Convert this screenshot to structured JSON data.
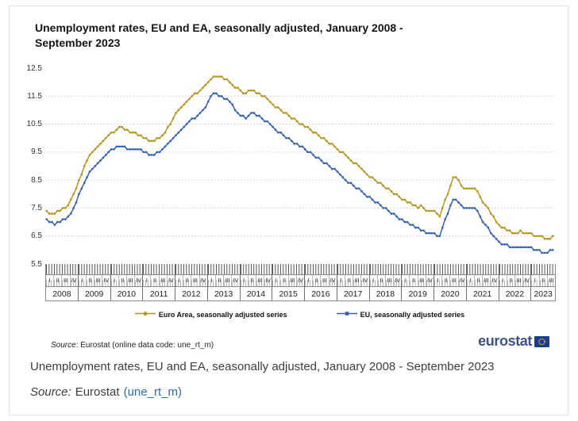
{
  "page": {
    "figure": {
      "title_line1": "Unemployment rates, EU and EA, seasonally adjusted, January 2008 -",
      "title_line2": "September 2023",
      "source_note_label": "Source",
      "source_note_rest": ": Eurostat (online data code: une_rt_m)",
      "logo_text": "eurostat"
    },
    "caption": {
      "text": "Unemployment rates, EU and EA, seasonally adjusted, January 2008 - September 2023",
      "source_label": "Source:",
      "source_text": "Eurostat",
      "source_link": "(une_rt_m)"
    }
  },
  "chart_data": {
    "type": "line",
    "title": "Unemployment rates, EU and EA, seasonally adjusted, January 2008 - September 2023",
    "xlabel": "",
    "ylabel": "",
    "x_unit": "month",
    "x_start": "2008-01",
    "x_end": "2023-09",
    "n_points": 189,
    "ylim": [
      5.5,
      12.5
    ],
    "yticks": [
      5.5,
      6.5,
      7.5,
      8.5,
      9.5,
      10.5,
      11.5,
      12.5
    ],
    "grid": "horizontal dotted lines at 6.5 through 11.5",
    "legend_position": "bottom-center",
    "axis_years": [
      "2008",
      "2009",
      "2010",
      "2011",
      "2012",
      "2013",
      "2014",
      "2015",
      "2016",
      "2017",
      "2018",
      "2019",
      "2020",
      "2021",
      "2022",
      "2023"
    ],
    "months_in_final_year": 9,
    "quarter_labels": [
      "I",
      "II",
      "III",
      "IV"
    ],
    "colors": {
      "euro_area": "#b5941f",
      "eu": "#3461ad",
      "gridline": "#cbcbcb"
    },
    "series": [
      {
        "name": "Euro Area, seasonally adjusted series",
        "color": "#b5941f",
        "values": [
          7.4,
          7.3,
          7.3,
          7.3,
          7.4,
          7.4,
          7.5,
          7.5,
          7.6,
          7.8,
          8.0,
          8.2,
          8.5,
          8.7,
          9.0,
          9.2,
          9.4,
          9.5,
          9.6,
          9.7,
          9.8,
          9.9,
          10.0,
          10.1,
          10.2,
          10.2,
          10.3,
          10.4,
          10.4,
          10.3,
          10.3,
          10.2,
          10.2,
          10.2,
          10.1,
          10.1,
          10.0,
          10.0,
          9.9,
          9.9,
          9.9,
          10.0,
          10.0,
          10.1,
          10.2,
          10.4,
          10.5,
          10.7,
          10.9,
          11.0,
          11.1,
          11.2,
          11.3,
          11.4,
          11.5,
          11.6,
          11.6,
          11.7,
          11.8,
          11.9,
          12.0,
          12.1,
          12.2,
          12.2,
          12.2,
          12.2,
          12.1,
          12.1,
          12.0,
          11.9,
          11.8,
          11.8,
          11.7,
          11.6,
          11.6,
          11.7,
          11.7,
          11.7,
          11.6,
          11.6,
          11.5,
          11.5,
          11.4,
          11.3,
          11.2,
          11.1,
          11.1,
          11.0,
          10.9,
          10.9,
          10.8,
          10.7,
          10.7,
          10.6,
          10.5,
          10.5,
          10.4,
          10.4,
          10.3,
          10.2,
          10.2,
          10.1,
          10.0,
          10.0,
          9.9,
          9.8,
          9.8,
          9.7,
          9.6,
          9.5,
          9.5,
          9.4,
          9.3,
          9.2,
          9.1,
          9.1,
          9.0,
          8.9,
          8.8,
          8.7,
          8.6,
          8.6,
          8.5,
          8.4,
          8.4,
          8.3,
          8.2,
          8.2,
          8.1,
          8.0,
          8.0,
          7.9,
          7.8,
          7.8,
          7.7,
          7.7,
          7.6,
          7.6,
          7.5,
          7.6,
          7.5,
          7.4,
          7.4,
          7.4,
          7.4,
          7.3,
          7.2,
          7.5,
          7.8,
          8.0,
          8.3,
          8.6,
          8.6,
          8.5,
          8.3,
          8.2,
          8.2,
          8.2,
          8.2,
          8.2,
          8.1,
          7.9,
          7.7,
          7.6,
          7.5,
          7.3,
          7.2,
          7.0,
          6.9,
          6.8,
          6.8,
          6.7,
          6.7,
          6.6,
          6.6,
          6.6,
          6.7,
          6.6,
          6.6,
          6.6,
          6.6,
          6.5,
          6.5,
          6.5,
          6.5,
          6.4,
          6.4,
          6.4,
          6.5
        ]
      },
      {
        "name": "EU, seasonally adjusted series",
        "color": "#3461ad",
        "values": [
          7.1,
          7.0,
          7.0,
          6.9,
          7.0,
          7.0,
          7.1,
          7.1,
          7.2,
          7.3,
          7.5,
          7.7,
          8.0,
          8.2,
          8.4,
          8.6,
          8.8,
          8.9,
          9.0,
          9.1,
          9.2,
          9.3,
          9.4,
          9.5,
          9.6,
          9.6,
          9.7,
          9.7,
          9.7,
          9.7,
          9.6,
          9.6,
          9.6,
          9.6,
          9.6,
          9.6,
          9.5,
          9.5,
          9.4,
          9.4,
          9.4,
          9.5,
          9.5,
          9.6,
          9.7,
          9.8,
          9.9,
          10.0,
          10.1,
          10.2,
          10.3,
          10.4,
          10.5,
          10.6,
          10.7,
          10.7,
          10.8,
          10.9,
          11.0,
          11.1,
          11.3,
          11.5,
          11.6,
          11.6,
          11.5,
          11.5,
          11.4,
          11.4,
          11.3,
          11.2,
          11.0,
          10.9,
          10.8,
          10.8,
          10.7,
          10.8,
          10.9,
          10.9,
          10.8,
          10.8,
          10.7,
          10.6,
          10.6,
          10.5,
          10.4,
          10.3,
          10.2,
          10.2,
          10.1,
          10.0,
          10.0,
          9.9,
          9.8,
          9.8,
          9.7,
          9.7,
          9.6,
          9.5,
          9.5,
          9.4,
          9.3,
          9.3,
          9.2,
          9.1,
          9.1,
          9.0,
          8.9,
          8.9,
          8.8,
          8.7,
          8.6,
          8.5,
          8.4,
          8.4,
          8.3,
          8.2,
          8.2,
          8.1,
          8.0,
          7.9,
          7.9,
          7.8,
          7.7,
          7.7,
          7.6,
          7.5,
          7.5,
          7.4,
          7.3,
          7.3,
          7.2,
          7.1,
          7.1,
          7.0,
          7.0,
          6.9,
          6.9,
          6.8,
          6.8,
          6.7,
          6.7,
          6.6,
          6.6,
          6.6,
          6.6,
          6.5,
          6.5,
          6.8,
          7.1,
          7.3,
          7.6,
          7.8,
          7.8,
          7.7,
          7.6,
          7.5,
          7.5,
          7.5,
          7.5,
          7.5,
          7.4,
          7.2,
          7.0,
          6.9,
          6.8,
          6.6,
          6.5,
          6.4,
          6.3,
          6.2,
          6.2,
          6.2,
          6.1,
          6.1,
          6.1,
          6.1,
          6.1,
          6.1,
          6.1,
          6.1,
          6.1,
          6.0,
          6.0,
          6.0,
          5.9,
          5.9,
          5.9,
          6.0,
          6.0
        ]
      }
    ]
  }
}
